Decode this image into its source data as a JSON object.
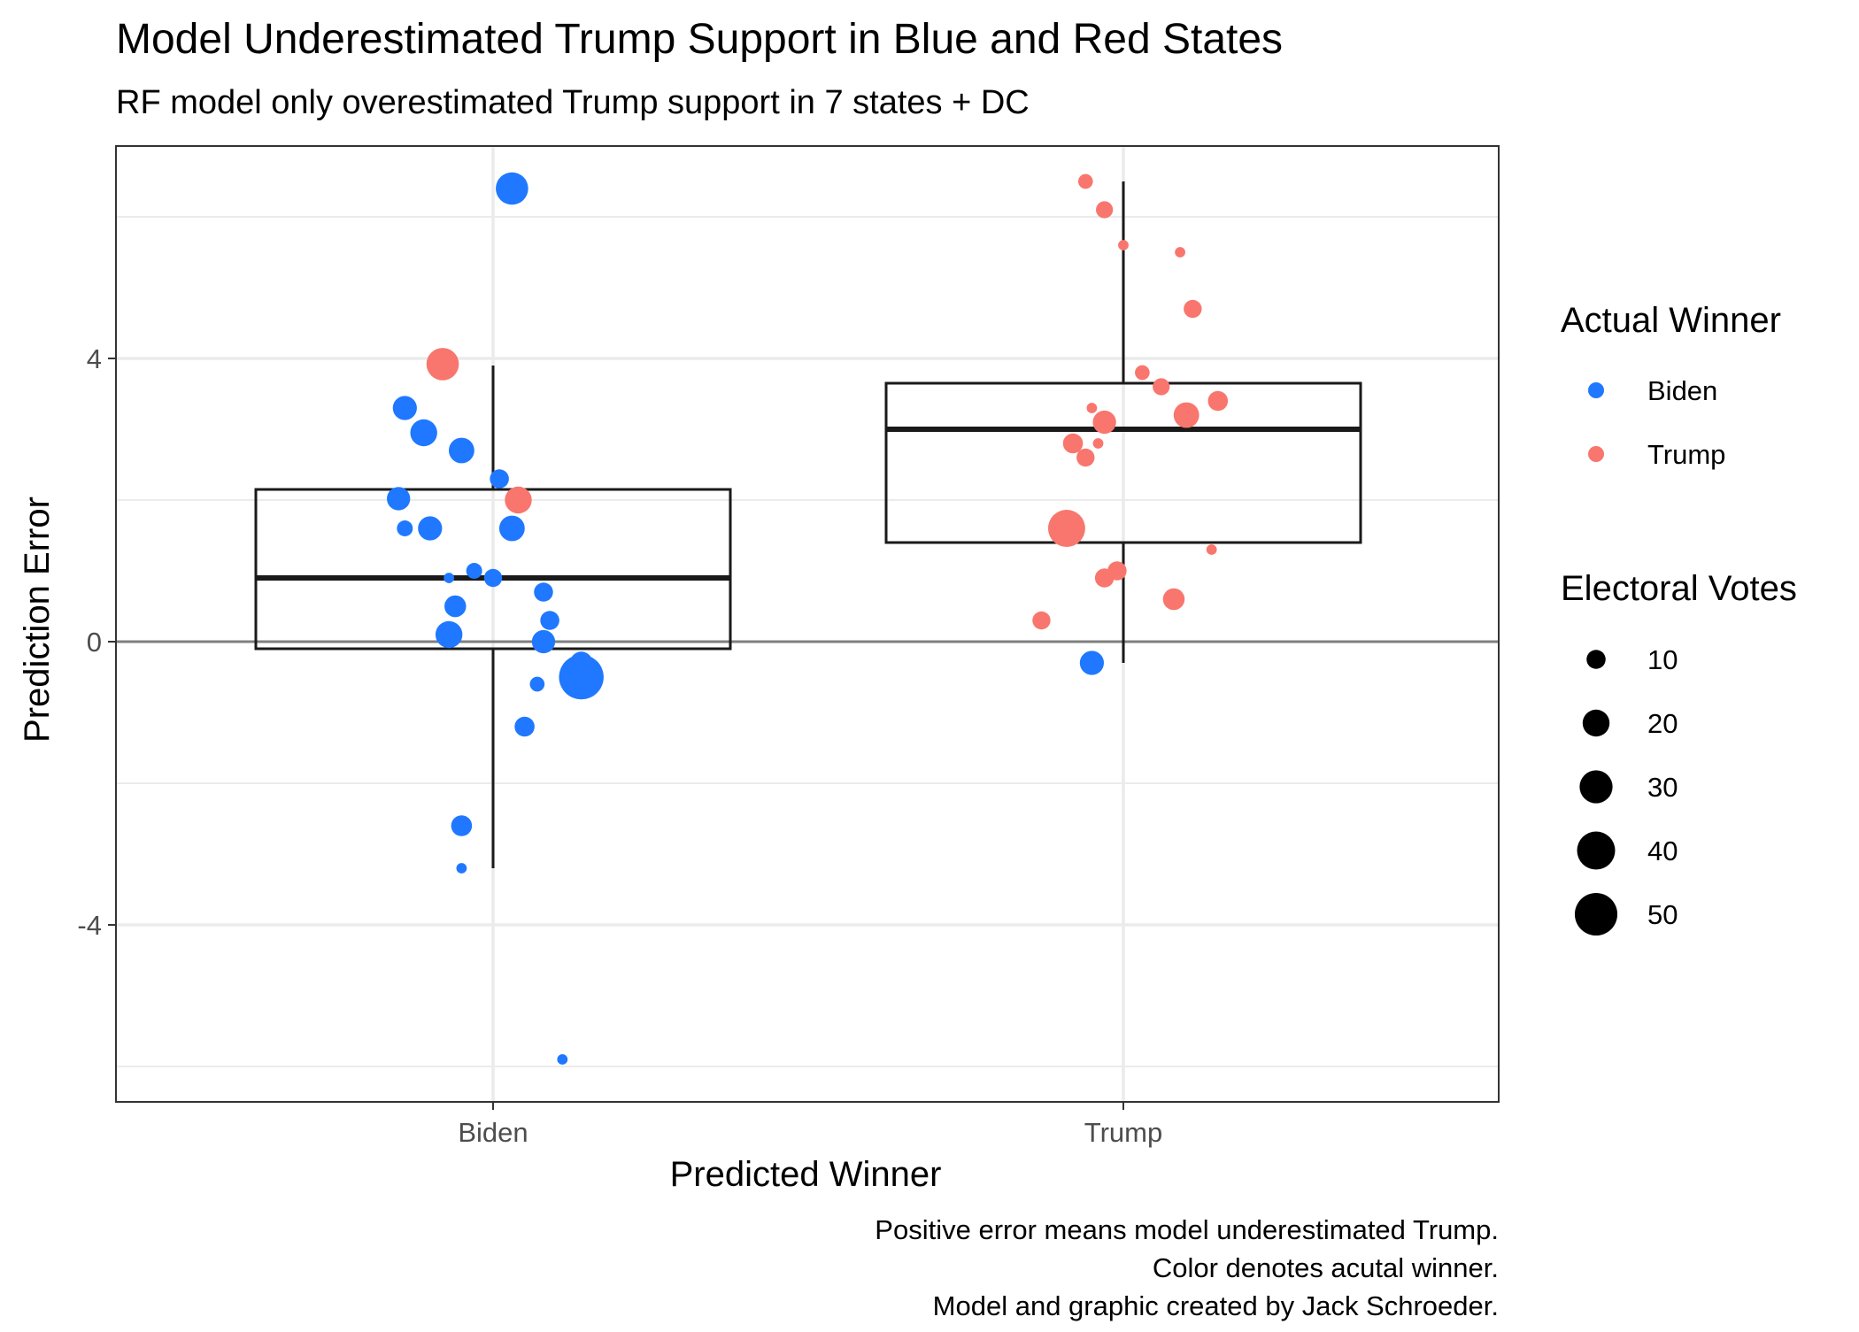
{
  "colors": {
    "biden": "#1f78ff",
    "trump": "#f8766d",
    "box": "#1a1a1a",
    "grid": "#ebebeb",
    "zero_line": "#7f7f7f",
    "panel_border": "#333333"
  },
  "chart_data": {
    "type": "scatter",
    "title": "Model Underestimated Trump Support in Blue and Red States",
    "subtitle": "RF model only overestimated Trump support in 7 states + DC",
    "xlabel": "Predicted Winner",
    "ylabel": "Prediction Error",
    "categories": [
      "Biden",
      "Trump"
    ],
    "ylim": [
      -6.5,
      7
    ],
    "y_ticks": [
      -4,
      0,
      4
    ],
    "y_minor_grid": [
      -6,
      -2,
      2,
      6
    ],
    "grid": true,
    "legend_position": "right",
    "legend_color": {
      "title": "Actual Winner",
      "entries": [
        {
          "label": "Biden",
          "key": "Biden"
        },
        {
          "label": "Trump",
          "key": "Trump"
        }
      ]
    },
    "legend_size": {
      "title": "Electoral Votes",
      "values": [
        10,
        20,
        30,
        40,
        50
      ]
    },
    "caption": [
      "Positive error means model underestimated Trump.",
      "Color denotes acutal winner.",
      "Model and graphic created by Jack Schroeder."
    ],
    "boxes": [
      {
        "category": "Biden",
        "lower_whisker": -3.2,
        "q1": -0.1,
        "median": 0.9,
        "q3": 2.15,
        "upper_whisker": 3.9
      },
      {
        "category": "Trump",
        "lower_whisker": -0.3,
        "q1": 1.4,
        "median": 3.0,
        "q3": 3.65,
        "upper_whisker": 6.5
      }
    ],
    "points": [
      {
        "predicted": "Biden",
        "jitter": 0.03,
        "y": 6.4,
        "votes": 29,
        "actual": "Biden"
      },
      {
        "predicted": "Biden",
        "jitter": -0.08,
        "y": 3.92,
        "votes": 29,
        "actual": "Trump"
      },
      {
        "predicted": "Biden",
        "jitter": -0.14,
        "y": 3.3,
        "votes": 16,
        "actual": "Biden"
      },
      {
        "predicted": "Biden",
        "jitter": -0.11,
        "y": 2.95,
        "votes": 20,
        "actual": "Biden"
      },
      {
        "predicted": "Biden",
        "jitter": -0.05,
        "y": 2.7,
        "votes": 18,
        "actual": "Biden"
      },
      {
        "predicted": "Biden",
        "jitter": 0.01,
        "y": 2.3,
        "votes": 10,
        "actual": "Biden"
      },
      {
        "predicted": "Biden",
        "jitter": -0.15,
        "y": 2.02,
        "votes": 15,
        "actual": "Biden"
      },
      {
        "predicted": "Biden",
        "jitter": 0.04,
        "y": 2.0,
        "votes": 20,
        "actual": "Trump"
      },
      {
        "predicted": "Biden",
        "jitter": -0.14,
        "y": 1.6,
        "votes": 7,
        "actual": "Biden"
      },
      {
        "predicted": "Biden",
        "jitter": -0.1,
        "y": 1.6,
        "votes": 16,
        "actual": "Biden"
      },
      {
        "predicted": "Biden",
        "jitter": 0.03,
        "y": 1.6,
        "votes": 18,
        "actual": "Biden"
      },
      {
        "predicted": "Biden",
        "jitter": -0.03,
        "y": 1.0,
        "votes": 7,
        "actual": "Biden"
      },
      {
        "predicted": "Biden",
        "jitter": -0.07,
        "y": 0.9,
        "votes": 3,
        "actual": "Biden"
      },
      {
        "predicted": "Biden",
        "jitter": 0.0,
        "y": 0.9,
        "votes": 9,
        "actual": "Biden"
      },
      {
        "predicted": "Biden",
        "jitter": 0.08,
        "y": 0.7,
        "votes": 10,
        "actual": "Biden"
      },
      {
        "predicted": "Biden",
        "jitter": -0.06,
        "y": 0.5,
        "votes": 13,
        "actual": "Biden"
      },
      {
        "predicted": "Biden",
        "jitter": 0.09,
        "y": 0.3,
        "votes": 10,
        "actual": "Biden"
      },
      {
        "predicted": "Biden",
        "jitter": -0.07,
        "y": 0.1,
        "votes": 20,
        "actual": "Biden"
      },
      {
        "predicted": "Biden",
        "jitter": 0.08,
        "y": 0.0,
        "votes": 15,
        "actual": "Biden"
      },
      {
        "predicted": "Biden",
        "jitter": 0.14,
        "y": -0.3,
        "votes": 14,
        "actual": "Biden"
      },
      {
        "predicted": "Biden",
        "jitter": 0.14,
        "y": -0.5,
        "votes": 55,
        "actual": "Biden"
      },
      {
        "predicted": "Biden",
        "jitter": 0.07,
        "y": -0.6,
        "votes": 6,
        "actual": "Biden"
      },
      {
        "predicted": "Biden",
        "jitter": 0.05,
        "y": -1.2,
        "votes": 11,
        "actual": "Biden"
      },
      {
        "predicted": "Biden",
        "jitter": -0.05,
        "y": -2.6,
        "votes": 12,
        "actual": "Biden"
      },
      {
        "predicted": "Biden",
        "jitter": -0.05,
        "y": -3.2,
        "votes": 3,
        "actual": "Biden"
      },
      {
        "predicted": "Biden",
        "jitter": 0.11,
        "y": -5.9,
        "votes": 3,
        "actual": "Biden"
      },
      {
        "predicted": "Trump",
        "jitter": -0.06,
        "y": 6.5,
        "votes": 6,
        "actual": "Trump"
      },
      {
        "predicted": "Trump",
        "jitter": -0.03,
        "y": 6.1,
        "votes": 8,
        "actual": "Trump"
      },
      {
        "predicted": "Trump",
        "jitter": 0.0,
        "y": 5.6,
        "votes": 3,
        "actual": "Trump"
      },
      {
        "predicted": "Trump",
        "jitter": 0.09,
        "y": 5.5,
        "votes": 3,
        "actual": "Trump"
      },
      {
        "predicted": "Trump",
        "jitter": 0.11,
        "y": 4.7,
        "votes": 9,
        "actual": "Trump"
      },
      {
        "predicted": "Trump",
        "jitter": 0.03,
        "y": 3.8,
        "votes": 6,
        "actual": "Trump"
      },
      {
        "predicted": "Trump",
        "jitter": 0.06,
        "y": 3.6,
        "votes": 8,
        "actual": "Trump"
      },
      {
        "predicted": "Trump",
        "jitter": 0.15,
        "y": 3.4,
        "votes": 11,
        "actual": "Trump"
      },
      {
        "predicted": "Trump",
        "jitter": 0.1,
        "y": 3.2,
        "votes": 18,
        "actual": "Trump"
      },
      {
        "predicted": "Trump",
        "jitter": -0.05,
        "y": 3.3,
        "votes": 3,
        "actual": "Trump"
      },
      {
        "predicted": "Trump",
        "jitter": -0.03,
        "y": 3.1,
        "votes": 15,
        "actual": "Trump"
      },
      {
        "predicted": "Trump",
        "jitter": -0.08,
        "y": 2.8,
        "votes": 11,
        "actual": "Trump"
      },
      {
        "predicted": "Trump",
        "jitter": -0.04,
        "y": 2.8,
        "votes": 3,
        "actual": "Trump"
      },
      {
        "predicted": "Trump",
        "jitter": -0.06,
        "y": 2.6,
        "votes": 9,
        "actual": "Trump"
      },
      {
        "predicted": "Trump",
        "jitter": -0.09,
        "y": 1.6,
        "votes": 38,
        "actual": "Trump"
      },
      {
        "predicted": "Trump",
        "jitter": 0.14,
        "y": 1.3,
        "votes": 3,
        "actual": "Trump"
      },
      {
        "predicted": "Trump",
        "jitter": -0.01,
        "y": 1.0,
        "votes": 10,
        "actual": "Trump"
      },
      {
        "predicted": "Trump",
        "jitter": -0.03,
        "y": 0.9,
        "votes": 10,
        "actual": "Trump"
      },
      {
        "predicted": "Trump",
        "jitter": 0.08,
        "y": 0.6,
        "votes": 13,
        "actual": "Trump"
      },
      {
        "predicted": "Trump",
        "jitter": -0.13,
        "y": 0.3,
        "votes": 9,
        "actual": "Trump"
      },
      {
        "predicted": "Trump",
        "jitter": -0.05,
        "y": -0.3,
        "votes": 16,
        "actual": "Biden"
      }
    ]
  }
}
